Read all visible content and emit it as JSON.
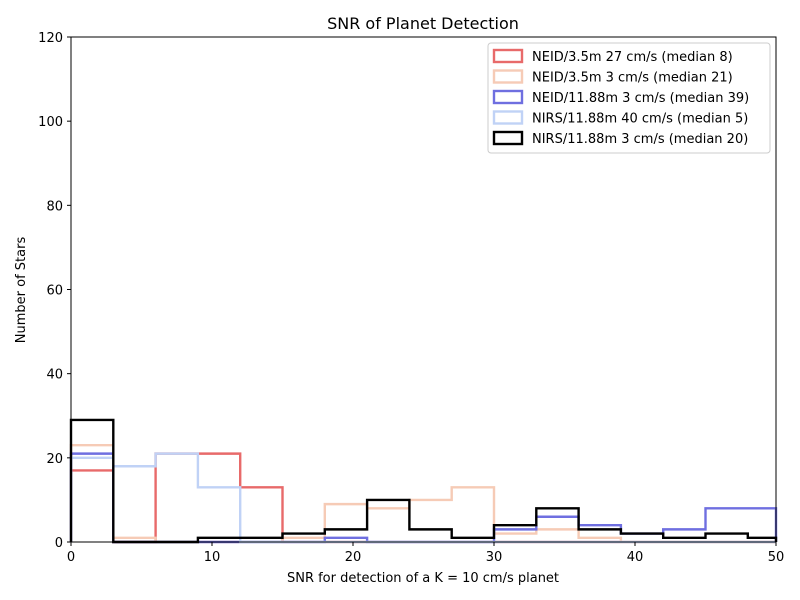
{
  "chart_data": {
    "type": "histogram-step",
    "title": "SNR of Planet Detection",
    "xlabel": "SNR for detection of a K = 10 cm/s planet",
    "ylabel": "Number of Stars",
    "xlim": [
      0,
      50
    ],
    "ylim": [
      0,
      120
    ],
    "xticks": [
      0,
      10,
      20,
      30,
      40,
      50
    ],
    "yticks": [
      0,
      20,
      40,
      60,
      80,
      100,
      120
    ],
    "grid": false,
    "legend_position": "top-right",
    "bin_edges": [
      0,
      3,
      6,
      9,
      12,
      15,
      18,
      21,
      24,
      27,
      30,
      33,
      36,
      39,
      42,
      45,
      48,
      50
    ],
    "series": [
      {
        "name": "NEID/3.5m 27 cm/s (median 8)",
        "color": "#e86a6a",
        "counts": [
          17,
          0,
          21,
          21,
          13,
          0,
          0,
          0,
          0,
          0,
          0,
          0,
          0,
          0,
          0,
          0,
          0
        ]
      },
      {
        "name": "NEID/3.5m 3 cm/s (median 21)",
        "color": "#f6cbb6",
        "counts": [
          23,
          1,
          0,
          0,
          0,
          1,
          9,
          8,
          10,
          13,
          2,
          3,
          1,
          0,
          0,
          0,
          0
        ]
      },
      {
        "name": "NEID/11.88m 3 cm/s (median 39)",
        "color": "#6f6fe0",
        "counts": [
          21,
          0,
          0,
          0,
          0,
          0,
          1,
          0,
          0,
          0,
          3,
          6,
          4,
          2,
          3,
          8,
          8
        ]
      },
      {
        "name": "NIRS/11.88m 40 cm/s (median 5)",
        "color": "#c0d2f6",
        "counts": [
          20,
          18,
          21,
          13,
          0,
          0,
          0,
          0,
          0,
          0,
          0,
          0,
          0,
          0,
          0,
          0,
          0
        ]
      },
      {
        "name": "NIRS/11.88m 3 cm/s (median 20)",
        "color": "#000000",
        "counts": [
          29,
          0,
          0,
          1,
          1,
          2,
          3,
          10,
          3,
          1,
          4,
          8,
          3,
          2,
          1,
          2,
          1
        ]
      }
    ]
  }
}
